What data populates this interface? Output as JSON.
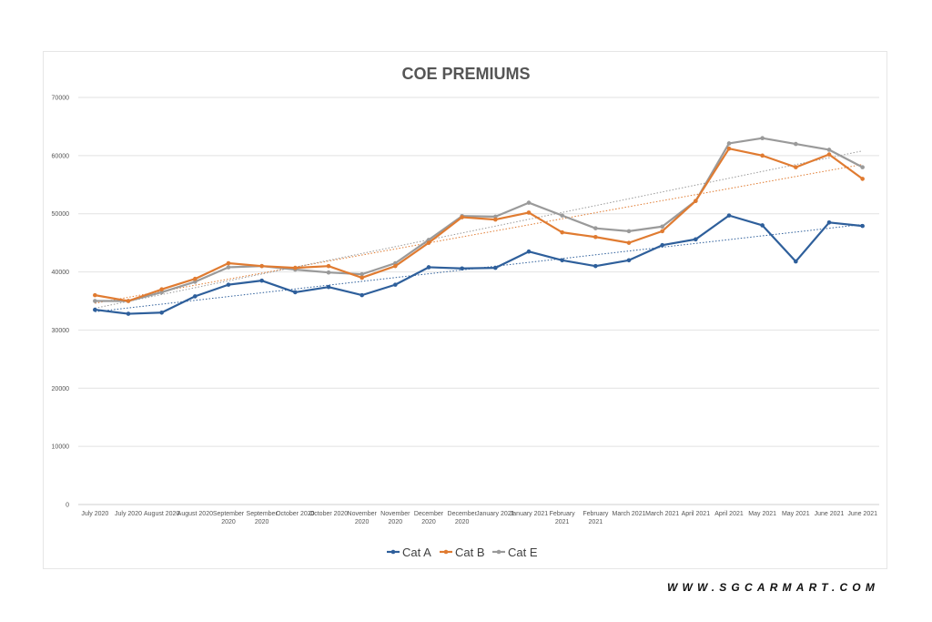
{
  "watermark": "WWW.SGCARMART.COM",
  "chart_data": {
    "type": "line",
    "title": "COE PREMIUMS",
    "xlabel": "",
    "ylabel": "",
    "ylim": [
      0,
      70000
    ],
    "yticks": [
      0,
      10000,
      20000,
      30000,
      40000,
      50000,
      60000,
      70000
    ],
    "grid": true,
    "legend": "bottom",
    "categories": [
      "July 2020",
      "July 2020",
      "August 2020",
      "August 2020",
      "September 2020",
      "September 2020",
      "October 2020",
      "October 2020",
      "November 2020",
      "November 2020",
      "December 2020",
      "December 2020",
      "January 2021",
      "January 2021",
      "February 2021",
      "February 2021",
      "March 2021",
      "March 2021",
      "April 2021",
      "April 2021",
      "May 2021",
      "May 2021",
      "June 2021",
      "June 2021"
    ],
    "series": [
      {
        "name": "Cat A",
        "color": "#2e5f9b",
        "values": [
          33500,
          32800,
          33000,
          35800,
          37800,
          38500,
          36500,
          37400,
          36000,
          37800,
          40800,
          40600,
          40700,
          43500,
          42000,
          41000,
          42000,
          44600,
          45600,
          49700,
          48000,
          41800,
          48500,
          47900
        ],
        "trendline": true
      },
      {
        "name": "Cat B",
        "color": "#e07b31",
        "values": [
          36000,
          35000,
          37000,
          38800,
          41500,
          41000,
          40700,
          41000,
          39000,
          41000,
          45000,
          49400,
          49000,
          50200,
          46800,
          46000,
          45000,
          47000,
          52200,
          61200,
          60000,
          58000,
          60200,
          56000
        ],
        "trendline": true
      },
      {
        "name": "Cat E",
        "color": "#9a9a9a",
        "values": [
          35000,
          35000,
          36500,
          38300,
          40800,
          41000,
          40400,
          39900,
          39600,
          41500,
          45500,
          49600,
          49500,
          51900,
          49700,
          47500,
          47000,
          47800,
          52200,
          62100,
          63000,
          62000,
          61000,
          58000
        ],
        "trendline": true
      }
    ]
  }
}
